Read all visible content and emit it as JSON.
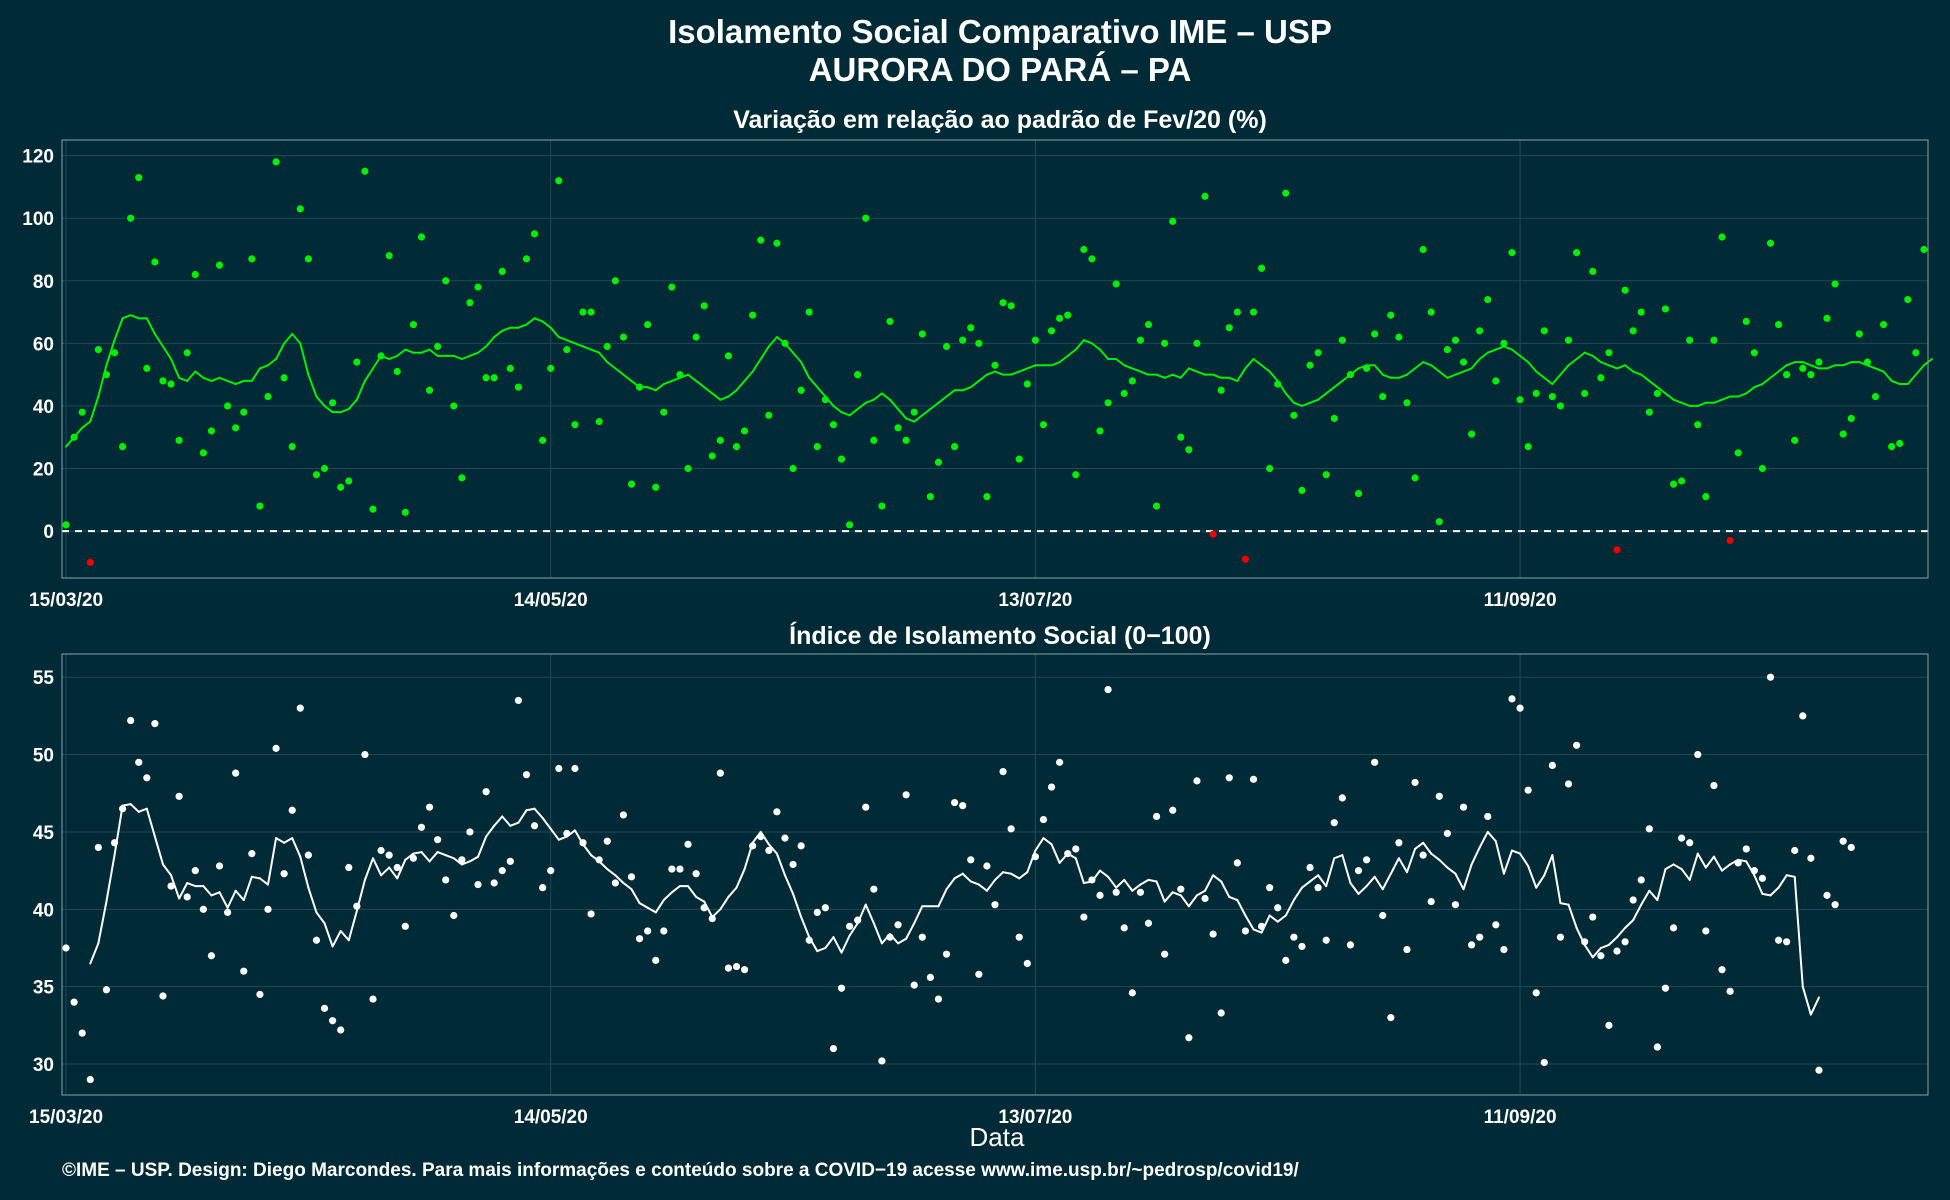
{
  "title_line1": "Isolamento Social Comparativo IME – USP",
  "title_line2": "AURORA DO PARÁ – PA",
  "xlabel": "Data",
  "credit": "©IME – USP. Design: Diego Marcondes. Para mais informações e conteúdo sobre a COVID−19 acesse www.ime.usp.br/~pedrosp/covid19/",
  "colors": {
    "background": "#002b36",
    "positive": "#00ee00",
    "negative": "#ee0000",
    "index": "#ffffff",
    "grid": "#1f4a55",
    "frame": "#8aa0a6"
  },
  "chart_data": [
    {
      "type": "scatter",
      "title": "Variação em relação ao padrão de Fev/20 (%)",
      "x_start": "2020-03-15",
      "x_end": "2020-10-31",
      "x_ticks": [
        "15/03/20",
        "14/05/20",
        "13/07/20",
        "11/09/20"
      ],
      "ylim": [
        -15,
        125
      ],
      "y_ticks": [
        0,
        20,
        40,
        60,
        80,
        100,
        120
      ],
      "reference_line": 0,
      "series": [
        {
          "type": "scatter",
          "values": [
            2,
            30,
            38,
            -10,
            58,
            50,
            57,
            27,
            100,
            113,
            52,
            86,
            48,
            47,
            29,
            57,
            82,
            25,
            32,
            85,
            40,
            33,
            38,
            87,
            8,
            43,
            118,
            49,
            27,
            103,
            87,
            18,
            20,
            41,
            14,
            16,
            54,
            115,
            7,
            56,
            88,
            51,
            6,
            66,
            94,
            45,
            59,
            80,
            40,
            17,
            73,
            78,
            49,
            49,
            83,
            52,
            46,
            87,
            95,
            29,
            52,
            112,
            58,
            34,
            70,
            70,
            35,
            59,
            80,
            62,
            15,
            46,
            66,
            14,
            38,
            78,
            50,
            20,
            62,
            72,
            24,
            29,
            56,
            27,
            32,
            69,
            93,
            37,
            92,
            60,
            20,
            45,
            70,
            27,
            42,
            34,
            23,
            2,
            50,
            100,
            29,
            8,
            67,
            33,
            29,
            38,
            63,
            11,
            22,
            59,
            27,
            61,
            65,
            60,
            11,
            53,
            73,
            72,
            23,
            47,
            61,
            34,
            64,
            68,
            69,
            18,
            90,
            87,
            32,
            41,
            79,
            44,
            48,
            61,
            66,
            8,
            60,
            99,
            30,
            26,
            60,
            107,
            -1,
            45,
            65,
            70,
            -9,
            70,
            84,
            20,
            47,
            108,
            37,
            13,
            53,
            57,
            18,
            36,
            61,
            50,
            12,
            52,
            63,
            43,
            69,
            62,
            41,
            17,
            90,
            70,
            3,
            58,
            61,
            54,
            31,
            64,
            74,
            48,
            60,
            89,
            42,
            27,
            44,
            64,
            43,
            40,
            61,
            89,
            44,
            83,
            49,
            57,
            -6,
            77,
            64,
            70,
            38,
            44,
            71,
            15,
            16,
            61,
            34,
            11,
            61,
            94,
            -3,
            25,
            67,
            57,
            20,
            92,
            66,
            50,
            29,
            52,
            50,
            54,
            68,
            79,
            31,
            36,
            63,
            54,
            43,
            66,
            27,
            28,
            74,
            57,
            90
          ]
        },
        {
          "type": "line",
          "name": "média móvel",
          "values": [
            27,
            30,
            33,
            35,
            43,
            53,
            61,
            68,
            69,
            68,
            68,
            63,
            59,
            55,
            49,
            48,
            51,
            49,
            48,
            49,
            48,
            47,
            48,
            48,
            52,
            53,
            55,
            60,
            63,
            60,
            50,
            43,
            40,
            38,
            38,
            39,
            42,
            48,
            52,
            56,
            55,
            56,
            58,
            57,
            57,
            58,
            56,
            56,
            56,
            55,
            56,
            57,
            59,
            62,
            64,
            65,
            65,
            66,
            68,
            67,
            65,
            62,
            61,
            60,
            59,
            58,
            57,
            54,
            52,
            50,
            48,
            46,
            46,
            45,
            47,
            48,
            49,
            50,
            48,
            46,
            44,
            42,
            43,
            45,
            48,
            51,
            55,
            59,
            62,
            60,
            57,
            54,
            49,
            46,
            43,
            40,
            38,
            37,
            39,
            41,
            42,
            44,
            42,
            39,
            36,
            35,
            37,
            39,
            41,
            43,
            45,
            45,
            46,
            48,
            50,
            51,
            50,
            50,
            51,
            52,
            53,
            53,
            53,
            54,
            56,
            58,
            61,
            60,
            58,
            55,
            55,
            53,
            52,
            51,
            50,
            50,
            49,
            50,
            49,
            52,
            51,
            50,
            50,
            49,
            49,
            48,
            52,
            55,
            53,
            51,
            48,
            44,
            41,
            40,
            41,
            42,
            44,
            46,
            48,
            50,
            52,
            53,
            53,
            50,
            49,
            49,
            50,
            52,
            54,
            53,
            51,
            49,
            50,
            51,
            52,
            55,
            57,
            58,
            59,
            58,
            56,
            54,
            51,
            49,
            47,
            50,
            53,
            55,
            57,
            56,
            54,
            53,
            52,
            53,
            51,
            50,
            48,
            46,
            44,
            42,
            41,
            40,
            40,
            41,
            41,
            42,
            43,
            43,
            44,
            46,
            47,
            49,
            51,
            53,
            54,
            54,
            53,
            52,
            52,
            53,
            53,
            54,
            54,
            53,
            52,
            51,
            48,
            47,
            47,
            50,
            53,
            55
          ]
        }
      ]
    },
    {
      "type": "scatter",
      "title": "Índice de Isolamento Social (0−100)",
      "x_start": "2020-03-15",
      "x_end": "2020-10-31",
      "x_ticks": [
        "15/03/20",
        "14/05/20",
        "13/07/20",
        "11/09/20"
      ],
      "ylim": [
        28,
        56.5
      ],
      "y_ticks": [
        30,
        35,
        40,
        45,
        50,
        55
      ],
      "series": [
        {
          "type": "scatter",
          "values": [
            37.5,
            34,
            32,
            29,
            44,
            34.8,
            44.3,
            46.5,
            52.2,
            49.5,
            48.5,
            52,
            34.4,
            41.5,
            47.3,
            40.8,
            42.5,
            40,
            37,
            42.8,
            39.8,
            48.8,
            36,
            43.6,
            34.5,
            40,
            50.4,
            42.3,
            46.4,
            53,
            43.5,
            38,
            33.6,
            32.8,
            32.2,
            42.7,
            40.2,
            50,
            34.2,
            43.8,
            43.5,
            42.7,
            38.9,
            43.3,
            45.3,
            46.6,
            44.5,
            41.9,
            39.6,
            43.2,
            45,
            41.6,
            47.6,
            41.7,
            42.5,
            43.1,
            53.5,
            48.7,
            45.4,
            41.4,
            42.5,
            49.1,
            44.9,
            49.1,
            44.3,
            39.7,
            43.2,
            44.4,
            41.7,
            46.1,
            42.1,
            38.1,
            38.6,
            36.7,
            38.6,
            42.6,
            42.6,
            44.2,
            42.3,
            40.1,
            39.4,
            48.8,
            36.2,
            36.3,
            36.1,
            44.1,
            44.7,
            43.8,
            46.3,
            44.6,
            42.9,
            44.1,
            38,
            39.8,
            40.1,
            31,
            34.9,
            38.9,
            39.3,
            46.6,
            41.3,
            30.2,
            38.2,
            39,
            47.4,
            35.1,
            38.2,
            35.6,
            34.2,
            37.1,
            46.9,
            46.7,
            43.2,
            35.8,
            42.8,
            40.3,
            48.9,
            45.2,
            38.2,
            36.5,
            43.4,
            45.8,
            47.9,
            49.5,
            43.6,
            43.9,
            39.5,
            41.9,
            40.9,
            54.2,
            41.1,
            38.8,
            34.6,
            41.1,
            39.1,
            46,
            37.1,
            46.4,
            41.3,
            31.7,
            48.3,
            40.7,
            38.4,
            33.3,
            48.5,
            43,
            38.6,
            48.4,
            38.9,
            41.4,
            40.1,
            36.7,
            38.2,
            37.6,
            42.7,
            41.4,
            38,
            45.6,
            47.2,
            37.7,
            42.5,
            43.2,
            49.5,
            39.6,
            33,
            44.3,
            37.4,
            48.2,
            43.5,
            40.5,
            47.3,
            44.9,
            40.3,
            46.6,
            37.7,
            38.2,
            46,
            39,
            37.4,
            53.6,
            53,
            47.7,
            34.6,
            30.1,
            49.3,
            38.2,
            48.1,
            50.6,
            37.9,
            39.5,
            37,
            32.5,
            37.3,
            37.9,
            40.6,
            41.9,
            45.2,
            31.1,
            34.9,
            38.8,
            44.6,
            44.3,
            50,
            38.6,
            48,
            36.1,
            34.7,
            43,
            43.9,
            42.5,
            42,
            55,
            38,
            37.9,
            43.8,
            52.5,
            43.3,
            29.6,
            40.9,
            40.3,
            44.4,
            44
          ]
        },
        {
          "type": "line",
          "name": "média móvel",
          "values": [
            null,
            null,
            null,
            36.5,
            37.8,
            40.5,
            43.5,
            46.7,
            46.8,
            46.3,
            46.5,
            44.7,
            42.9,
            42.2,
            40.7,
            41.7,
            41.5,
            41.5,
            40.9,
            41.1,
            40.1,
            41.2,
            40.6,
            42.1,
            42,
            41.6,
            44.6,
            44.3,
            44.6,
            43.4,
            41.4,
            39.8,
            39.1,
            37.6,
            38.6,
            38,
            39.9,
            41.9,
            43.3,
            42.2,
            42.7,
            42,
            43.2,
            43.6,
            43.7,
            43.1,
            43.7,
            43.5,
            43.3,
            42.9,
            43.1,
            43.4,
            44.7,
            45.4,
            46,
            45.4,
            45.6,
            46.4,
            46.5,
            45.9,
            45.2,
            44.5,
            44.7,
            45.1,
            44.2,
            43.5,
            43.1,
            42.6,
            42.2,
            41.7,
            41.3,
            40.4,
            40.1,
            39.8,
            40.6,
            41.1,
            41.5,
            41.5,
            40.8,
            40.5,
            39.5,
            40,
            40.8,
            41.4,
            42.6,
            44.3,
            45,
            44.2,
            43.6,
            42.2,
            41,
            39.5,
            38.2,
            37.3,
            37.5,
            38.2,
            37.2,
            38.3,
            39.1,
            40.3,
            39.1,
            37.8,
            38.4,
            37.8,
            38.1,
            39.1,
            40.2,
            40.2,
            40.2,
            41.3,
            42,
            42.3,
            41.8,
            41.6,
            41.2,
            41.9,
            42.4,
            42.3,
            42,
            42.4,
            43.8,
            44.6,
            44.2,
            43,
            43.6,
            43.3,
            41.7,
            41.8,
            42.5,
            42.1,
            41.4,
            41.9,
            41.2,
            41.6,
            41.9,
            41.8,
            40.5,
            41.1,
            40.9,
            40.2,
            40.9,
            41.2,
            42.2,
            41.8,
            40.8,
            40.6,
            39.6,
            38.7,
            38.5,
            39.6,
            39.2,
            39.6,
            40.6,
            41.4,
            41.8,
            42.2,
            41.5,
            43.3,
            43.5,
            41.7,
            41,
            41.5,
            42.1,
            41.3,
            42.3,
            43.3,
            42.4,
            43.9,
            44.3,
            43.6,
            43.2,
            42.7,
            42.3,
            41.3,
            42.9,
            44,
            45,
            44.4,
            42.3,
            43.8,
            43.6,
            42.8,
            41.4,
            42.2,
            43.5,
            40.4,
            40.3,
            38.8,
            37.7,
            36.9,
            37.5,
            37.7,
            38.2,
            38.8,
            39.3,
            40.3,
            41.2,
            40.6,
            42.6,
            42.9,
            42.6,
            41.9,
            43.6,
            42.7,
            43.4,
            42.5,
            42.9,
            43.2,
            43.1,
            42.2,
            41,
            40.9,
            41.4,
            42.2,
            42.1,
            35,
            33.2,
            34.3
          ]
        }
      ]
    }
  ]
}
